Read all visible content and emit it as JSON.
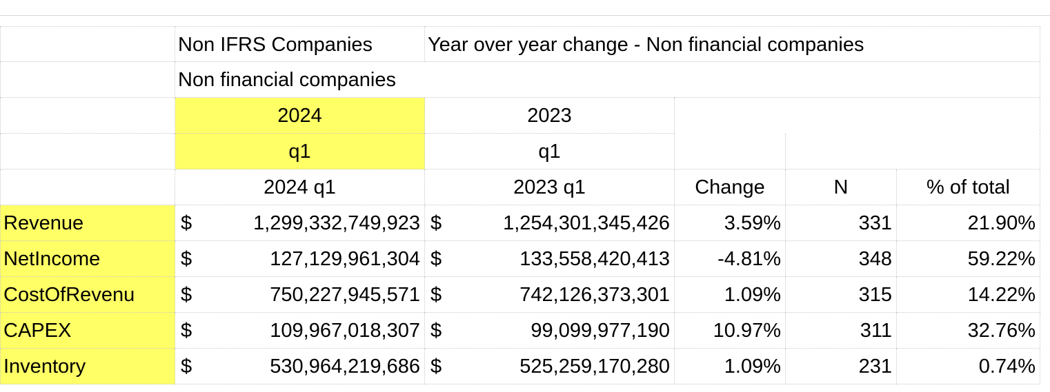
{
  "header": {
    "title_left": "Non IFRS Companies",
    "title_right": "Year over year change - Non financial companies",
    "subtitle": "Non financial companies",
    "year_a": "2024",
    "year_b": "2023",
    "quarter_a": "q1",
    "quarter_b": "q1"
  },
  "columns": [
    "2024 q1",
    "2023 q1",
    "Change",
    "N",
    "% of total"
  ],
  "currency": "$",
  "rows": [
    {
      "label": "Revenue",
      "v2024": "1,299,332,749,923",
      "v2023": "1,254,301,345,426",
      "change": "3.59%",
      "n": "331",
      "pct": "21.90%"
    },
    {
      "label": "NetIncome",
      "v2024": "127,129,961,304",
      "v2023": "133,558,420,413",
      "change": "-4.81%",
      "n": "348",
      "pct": "59.22%"
    },
    {
      "label": "CostOfRevenu",
      "v2024": "750,227,945,571",
      "v2023": "742,126,373,301",
      "change": "1.09%",
      "n": "315",
      "pct": "14.22%"
    },
    {
      "label": "CAPEX",
      "v2024": "109,967,018,307",
      "v2023": "99,099,977,190",
      "change": "10.97%",
      "n": "311",
      "pct": "32.76%"
    },
    {
      "label": "Inventory",
      "v2024": "530,964,219,686",
      "v2023": "525,259,170,280",
      "change": "1.09%",
      "n": "231",
      "pct": "0.74%"
    }
  ],
  "colors": {
    "highlight": "#ffff66",
    "grid": "#c8c8c8"
  }
}
